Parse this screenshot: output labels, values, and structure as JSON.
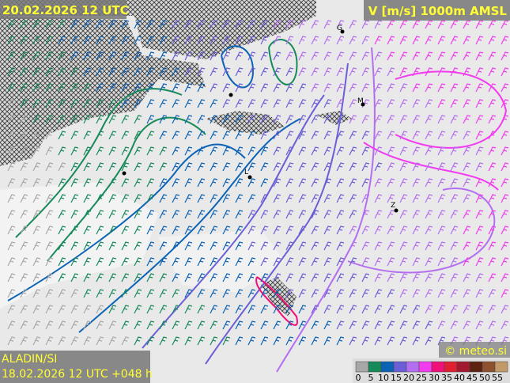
{
  "header": {
    "valid_time": "20.02.2026 12 UTC",
    "field": "V [m/s] 1000m AMSL"
  },
  "footer": {
    "model": "ALADIN/SI",
    "run": "18.02.2026 12 UTC +048 h",
    "credit": "© meteo.si"
  },
  "map": {
    "markers": [
      "G",
      "M",
      "L",
      "Z"
    ]
  },
  "legend": {
    "labels": [
      "0",
      "5",
      "10",
      "15",
      "20",
      "25",
      "30",
      "35",
      "40",
      "45",
      "50",
      "55"
    ],
    "colors": [
      "#a8a8a8",
      "#178a5a",
      "#0b63b5",
      "#6a5fd6",
      "#b46ff0",
      "#f23cf0",
      "#f0107a",
      "#e02030",
      "#a31a30",
      "#5e2210",
      "#8e5230",
      "#c29a68"
    ]
  }
}
